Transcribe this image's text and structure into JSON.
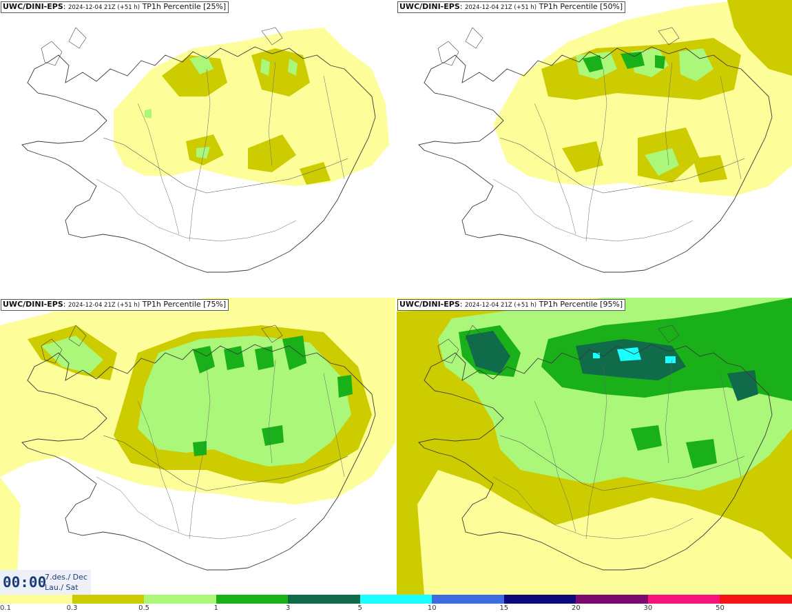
{
  "panels": [
    {
      "model": "UWC/DINI-EPS",
      "run": "2024-12-04 21Z (+51 h)",
      "label": "TP1h Percentile [25%]"
    },
    {
      "model": "UWC/DINI-EPS",
      "run": "2024-12-04 21Z (+51 h)",
      "label": "TP1h Percentile [50%]"
    },
    {
      "model": "UWC/DINI-EPS",
      "run": "2024-12-04 21Z (+51 h)",
      "label": "TP1h Percentile [75%]"
    },
    {
      "model": "UWC/DINI-EPS",
      "run": "2024-12-04 21Z (+51 h)",
      "label": "TP1h Percentile [95%]"
    }
  ],
  "timebox": {
    "time": "00:00",
    "date_line1": "7.des./ Dec",
    "date_line2": "Lau./ Sat"
  },
  "legend": {
    "ticks": [
      "0.1",
      "0.3",
      "0.5",
      "1",
      "3",
      "5",
      "10",
      "15",
      "20",
      "30",
      "50"
    ],
    "colors": [
      "#fdfd9a",
      "#cccc00",
      "#aaf77a",
      "#19b019",
      "#0f6b49",
      "#19ffff",
      "#3d6be0",
      "#0a0a7a",
      "#7a0a70",
      "#f5147a",
      "#f51414"
    ]
  }
}
